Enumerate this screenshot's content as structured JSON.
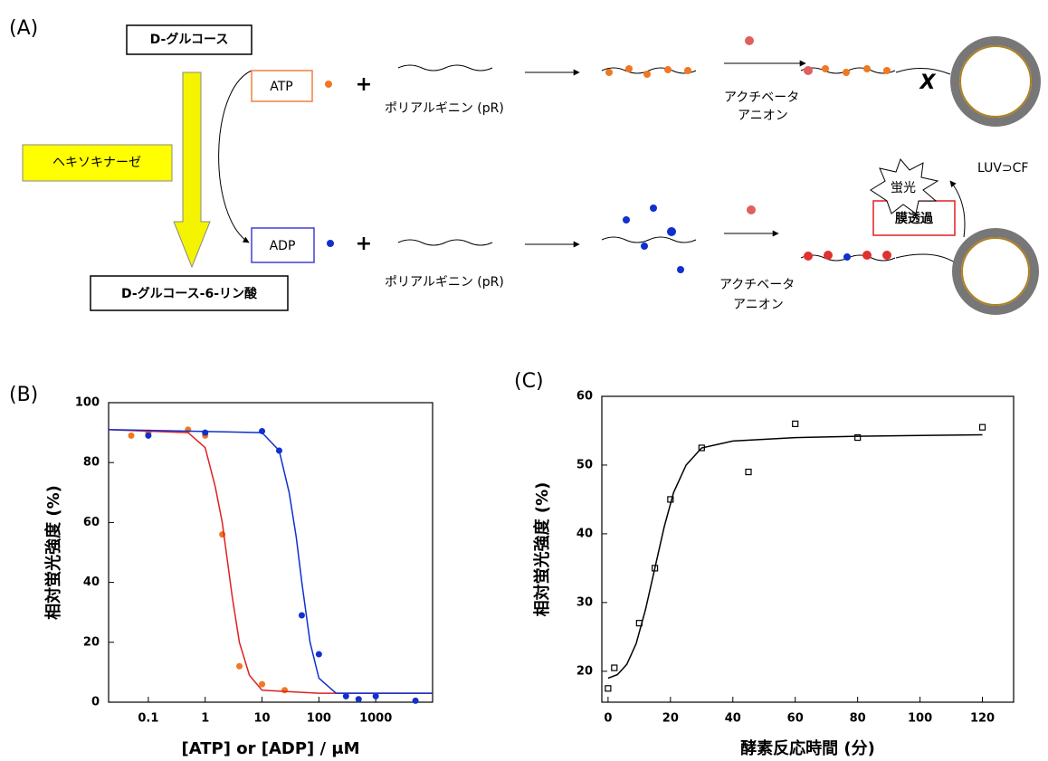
{
  "diagram": {
    "label": "(A)",
    "glucose": "D-グルコース",
    "enzyme": "ヘキソキナーゼ",
    "product": "D-グルコース-6-リン酸",
    "atp": "ATP",
    "adp": "ADP",
    "plus": [
      "+",
      "+"
    ],
    "polymer": [
      "ポリアルギニン (pR)",
      "ポリアルギニン (pR)"
    ],
    "activator": [
      [
        "アクチベータ",
        "アニオン"
      ],
      [
        "アクチベータ",
        "アニオン"
      ]
    ],
    "blocked": "X",
    "fluorescence": "蛍光",
    "vesicle": "LUV⊃CF",
    "permeation": "膜透過"
  },
  "chart_data": [
    {
      "type": "scatter",
      "panel": "(B)",
      "xlabel": "[ATP] or [ADP] / μM",
      "ylabel": "相対蛍光強度 (%)",
      "xscale": "log",
      "xlim": [
        0.02,
        10000
      ],
      "ylim": [
        0,
        100
      ],
      "xticks": [
        0.1,
        1,
        10,
        100,
        1000
      ],
      "yticks": [
        0,
        20,
        40,
        60,
        80,
        100
      ],
      "series": [
        {
          "style": "points",
          "marker": "circle",
          "color": "#f07820",
          "x": [
            0.05,
            0.1,
            0.5,
            1,
            2,
            4,
            10,
            25,
            500
          ],
          "values": [
            89,
            90,
            91,
            89,
            56,
            12,
            6,
            4,
            1
          ]
        },
        {
          "style": "points",
          "marker": "circle",
          "color": "#1030d0",
          "x": [
            0.1,
            1,
            10,
            20,
            50,
            100,
            300,
            500,
            1000,
            5000
          ],
          "values": [
            89,
            90,
            90.5,
            84,
            29,
            16,
            2,
            1,
            2,
            0.5
          ]
        },
        {
          "style": "line",
          "color": "#e02020",
          "x": [
            0.02,
            0.5,
            1,
            1.5,
            2,
            3,
            4,
            6,
            10,
            100,
            10000
          ],
          "values": [
            91,
            90,
            85,
            72,
            60,
            35,
            20,
            9,
            4,
            3,
            3
          ]
        },
        {
          "style": "line",
          "color": "#1030d0",
          "x": [
            0.02,
            10,
            20,
            30,
            40,
            50,
            70,
            100,
            200,
            10000
          ],
          "values": [
            91,
            90,
            84,
            70,
            55,
            40,
            20,
            8,
            3,
            3
          ]
        }
      ]
    },
    {
      "type": "scatter",
      "panel": "(C)",
      "xlabel": "酵素反応時間 (分)",
      "ylabel": "相対蛍光強度 (%)",
      "xlim": [
        -2,
        130
      ],
      "ylim": [
        15.5,
        60
      ],
      "xticks": [
        0,
        20,
        40,
        60,
        80,
        100,
        120
      ],
      "yticks": [
        20,
        30,
        40,
        50,
        60
      ],
      "series": [
        {
          "style": "points",
          "marker": "open-square",
          "color": "#000000",
          "x": [
            0,
            2,
            10,
            15,
            20,
            30,
            45,
            60,
            80,
            120
          ],
          "values": [
            17.5,
            20.5,
            27,
            35,
            45,
            52.5,
            49,
            56,
            54,
            55.5
          ]
        },
        {
          "style": "line",
          "color": "#000000",
          "x": [
            0,
            3,
            6,
            9,
            12,
            15,
            18,
            21,
            25,
            30,
            40,
            60,
            80,
            100,
            120
          ],
          "values": [
            19,
            19.5,
            21,
            24,
            29,
            35,
            41,
            46,
            50,
            52.5,
            53.5,
            54,
            54.2,
            54.3,
            54.4
          ]
        }
      ]
    }
  ]
}
